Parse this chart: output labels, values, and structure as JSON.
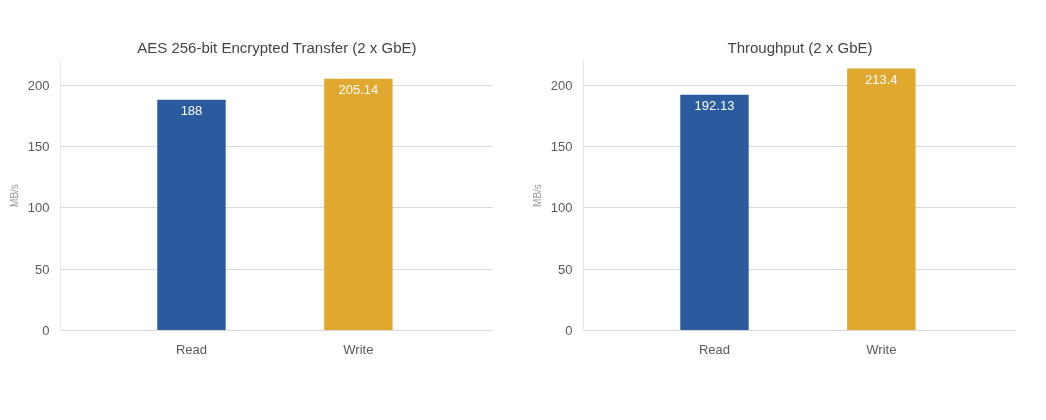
{
  "chart_data": [
    {
      "type": "bar",
      "title": "AES 256-bit Encrypted Transfer (2 x GbE)",
      "ylabel": "MB/s",
      "categories": [
        "Read",
        "Write"
      ],
      "values": [
        188,
        205.14
      ],
      "colors": [
        "#2b5b9f",
        "#e0a82e"
      ],
      "ylim": [
        0,
        220
      ],
      "yticks": [
        0,
        50,
        100,
        150,
        200
      ],
      "grid": "y",
      "data_labels": true
    },
    {
      "type": "bar",
      "title": "Throughput (2 x GbE)",
      "ylabel": "MB/s",
      "categories": [
        "Read",
        "Write"
      ],
      "values": [
        192.13,
        213.4
      ],
      "colors": [
        "#2b5b9f",
        "#e0a82e"
      ],
      "ylim": [
        0,
        220
      ],
      "yticks": [
        0,
        50,
        100,
        150,
        200
      ],
      "grid": "y",
      "data_labels": true
    }
  ]
}
